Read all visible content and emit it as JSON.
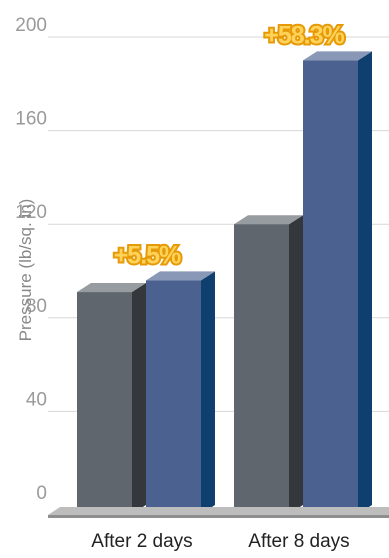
{
  "chart_data": {
    "type": "bar",
    "categories": [
      "After 2 days",
      "After 8 days"
    ],
    "series": [
      {
        "values": [
          91,
          120
        ],
        "color": "#5f666d"
      },
      {
        "values": [
          96,
          190
        ],
        "color": "#4b6190"
      }
    ],
    "ylabel": "Pressure (lb/sq. in)",
    "xlabel": "",
    "ylim": [
      0,
      200
    ],
    "yticks": [
      0,
      40,
      80,
      120,
      160,
      200
    ],
    "grid": true,
    "annotations": [
      {
        "text": "+5.5%",
        "category": "After 2 days"
      },
      {
        "text": "+58.3%",
        "category": "After 8 days"
      }
    ]
  }
}
